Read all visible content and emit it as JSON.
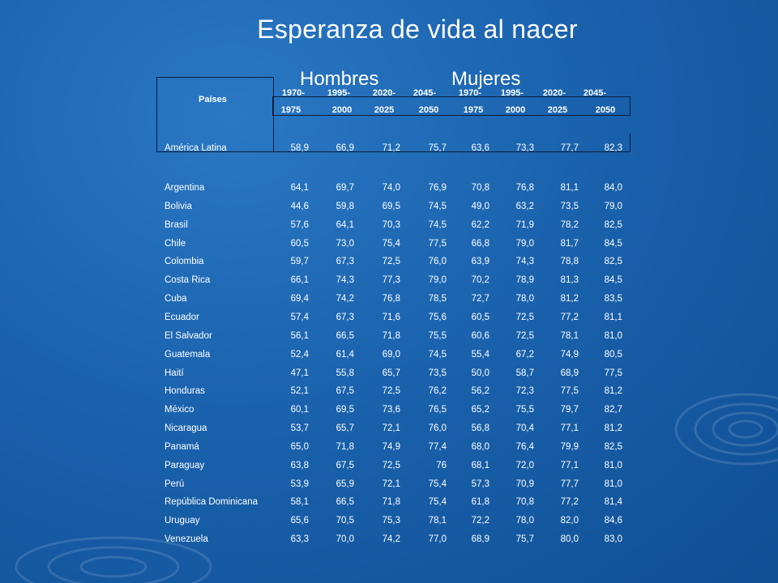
{
  "title": "Esperanza de vida al nacer",
  "groups": {
    "hombres": "Hombres",
    "mujeres": "Mujeres"
  },
  "paises_label": "Países",
  "period_start": [
    "1970-",
    "1995-",
    "2020-",
    "2045-",
    "1970-",
    "1995-",
    "2020-",
    "2045-"
  ],
  "period_end": [
    "1975",
    "2000",
    "2025",
    "2050",
    "1975",
    "2000",
    "2025",
    "2050"
  ],
  "total_row": {
    "name": "América Latina",
    "values": [
      "58,9",
      "66,9",
      "71,2",
      "75,7",
      "63,6",
      "73,3",
      "77,7",
      "82,3"
    ]
  },
  "rows": [
    {
      "name": "Argentina",
      "values": [
        "64,1",
        "69,7",
        "74,0",
        "76,9",
        "70,8",
        "76,8",
        "81,1",
        "84,0"
      ]
    },
    {
      "name": "Bolivia",
      "values": [
        "44,6",
        "59,8",
        "69,5",
        "74,5",
        "49,0",
        "63,2",
        "73,5",
        "79,0"
      ]
    },
    {
      "name": "Brasil",
      "values": [
        "57,6",
        "64,1",
        "70,3",
        "74,5",
        "62,2",
        "71,9",
        "78,2",
        "82,5"
      ]
    },
    {
      "name": "Chile",
      "values": [
        "60,5",
        "73,0",
        "75,4",
        "77,5",
        "66,8",
        "79,0",
        "81,7",
        "84,5"
      ]
    },
    {
      "name": "Colombia",
      "values": [
        "59,7",
        "67,3",
        "72,5",
        "76,0",
        "63,9",
        "74,3",
        "78,8",
        "82,5"
      ]
    },
    {
      "name": "Costa Rica",
      "values": [
        "66,1",
        "74,3",
        "77,3",
        "79,0",
        "70,2",
        "78,9",
        "81,3",
        "84,5"
      ]
    },
    {
      "name": "Cuba",
      "values": [
        "69,4",
        "74,2",
        "76,8",
        "78,5",
        "72,7",
        "78,0",
        "81,2",
        "83,5"
      ]
    },
    {
      "name": "Ecuador",
      "values": [
        "57,4",
        "67,3",
        "71,6",
        "75,6",
        "60,5",
        "72,5",
        "77,2",
        "81,1"
      ]
    },
    {
      "name": "El Salvador",
      "values": [
        "56,1",
        "66,5",
        "71,8",
        "75,5",
        "60,6",
        "72,5",
        "78,1",
        "81,0"
      ]
    },
    {
      "name": "Guatemala",
      "values": [
        "52,4",
        "61,4",
        "69,0",
        "74,5",
        "55,4",
        "67,2",
        "74,9",
        "80,5"
      ]
    },
    {
      "name": "Haití",
      "values": [
        "47,1",
        "55,8",
        "65,7",
        "73,5",
        "50,0",
        "58,7",
        "68,9",
        "77,5"
      ]
    },
    {
      "name": "Honduras",
      "values": [
        "52,1",
        "67,5",
        "72,5",
        "76,2",
        "56,2",
        "72,3",
        "77,5",
        "81,2"
      ]
    },
    {
      "name": "México",
      "values": [
        "60,1",
        "69,5",
        "73,6",
        "76,5",
        "65,2",
        "75,5",
        "79,7",
        "82,7"
      ]
    },
    {
      "name": "Nicaragua",
      "values": [
        "53,7",
        "65,7",
        "72,1",
        "76,0",
        "56,8",
        "70,4",
        "77,1",
        "81,2"
      ]
    },
    {
      "name": "Panamá",
      "values": [
        "65,0",
        "71,8",
        "74,9",
        "77,4",
        "68,0",
        "76,4",
        "79,9",
        "82,5"
      ]
    },
    {
      "name": "Paraguay",
      "values": [
        "63,8",
        "67,5",
        "72,5",
        "76",
        "68,1",
        "72,0",
        "77,1",
        "81,0"
      ]
    },
    {
      "name": "Perú",
      "values": [
        "53,9",
        "65,9",
        "72,1",
        "75,4",
        "57,3",
        "70,9",
        "77,7",
        "81,0"
      ]
    },
    {
      "name": "República Dominicana",
      "values": [
        "58,1",
        "66,5",
        "71,8",
        "75,4",
        "61,8",
        "70,8",
        "77,2",
        "81,4"
      ]
    },
    {
      "name": "Uruguay",
      "values": [
        "65,6",
        "70,5",
        "75,3",
        "78,1",
        "72,2",
        "78,0",
        "82,0",
        "84,6"
      ]
    },
    {
      "name": "Venezuela",
      "values": [
        "63,3",
        "70,0",
        "74,2",
        "77,0",
        "68,9",
        "75,7",
        "80,0",
        "83,0"
      ]
    }
  ]
}
